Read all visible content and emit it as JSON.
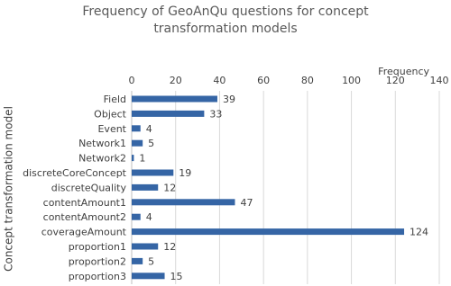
{
  "chart_data": {
    "type": "hbar",
    "title": "Frequency of GeoAnQu questions for concept transformation models",
    "x_label": "Frequency",
    "y_label": "Concept transformation model",
    "categories": [
      "Field",
      "Object",
      "Event",
      "Network1",
      "Network2",
      "discreteCoreConcept",
      "discreteQuality",
      "contentAmount1",
      "contentAmount2",
      "coverageAmount",
      "proportion1",
      "proportion2",
      "proportion3"
    ],
    "values": [
      39,
      33,
      4,
      5,
      1,
      19,
      12,
      47,
      4,
      124,
      12,
      5,
      15
    ],
    "color": "#3565a5",
    "xlim": [
      0,
      140
    ],
    "xticks": [
      0,
      20,
      40,
      60,
      80,
      100,
      120,
      140
    ],
    "grid": true
  }
}
